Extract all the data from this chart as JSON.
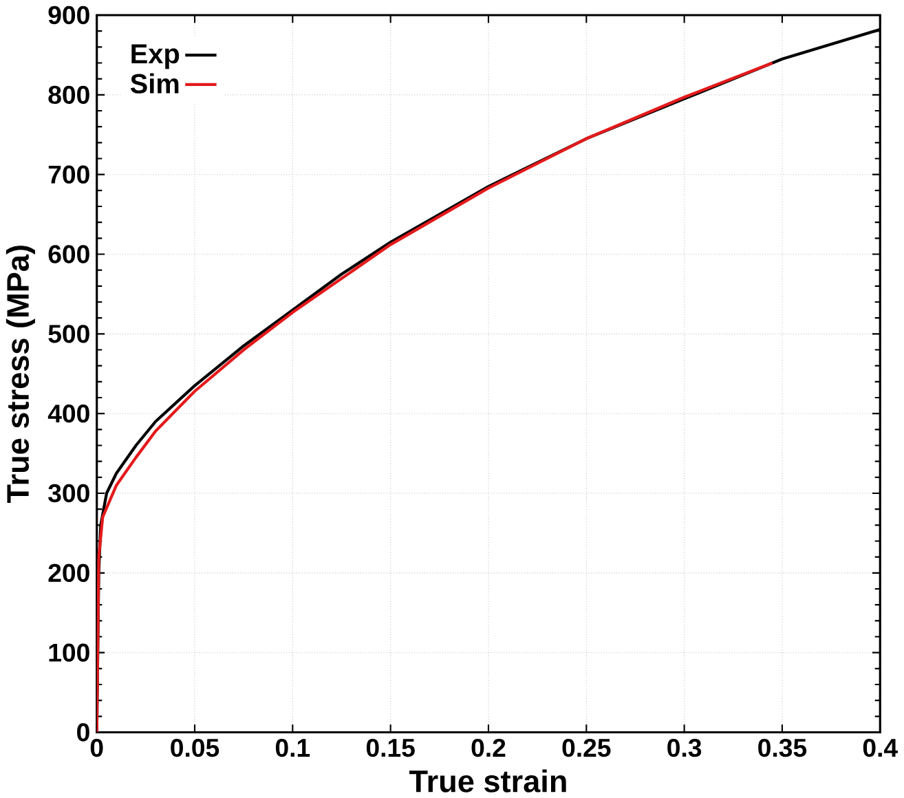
{
  "chart_data": {
    "type": "line",
    "xlabel": "True strain",
    "ylabel": "True stress (MPa)",
    "xlim": [
      0,
      0.4
    ],
    "ylim": [
      0,
      900
    ],
    "xticks": [
      0,
      0.05,
      0.1,
      0.15,
      0.2,
      0.25,
      0.3,
      0.35,
      0.4
    ],
    "yticks": [
      0,
      100,
      200,
      300,
      400,
      500,
      600,
      700,
      800,
      900
    ],
    "grid": true,
    "legend": "top left",
    "marker": "none",
    "line_style": "solid",
    "series": [
      {
        "name": "Exp",
        "color": "#000000",
        "x": [
          0,
          0.001,
          0.002,
          0.005,
          0.01,
          0.02,
          0.03,
          0.05,
          0.075,
          0.1,
          0.125,
          0.15,
          0.175,
          0.2,
          0.25,
          0.3,
          0.35,
          0.4
        ],
        "values": [
          0,
          200,
          260,
          300,
          325,
          360,
          390,
          435,
          485,
          530,
          575,
          615,
          650,
          685,
          745,
          795,
          845,
          882
        ]
      },
      {
        "name": "Sim",
        "color": "#e41a1c",
        "x": [
          0,
          0.001,
          0.003,
          0.01,
          0.02,
          0.03,
          0.05,
          0.075,
          0.1,
          0.15,
          0.2,
          0.25,
          0.3,
          0.345
        ],
        "values": [
          0,
          220,
          270,
          310,
          345,
          378,
          428,
          480,
          527,
          612,
          683,
          745,
          797,
          840
        ]
      }
    ]
  }
}
